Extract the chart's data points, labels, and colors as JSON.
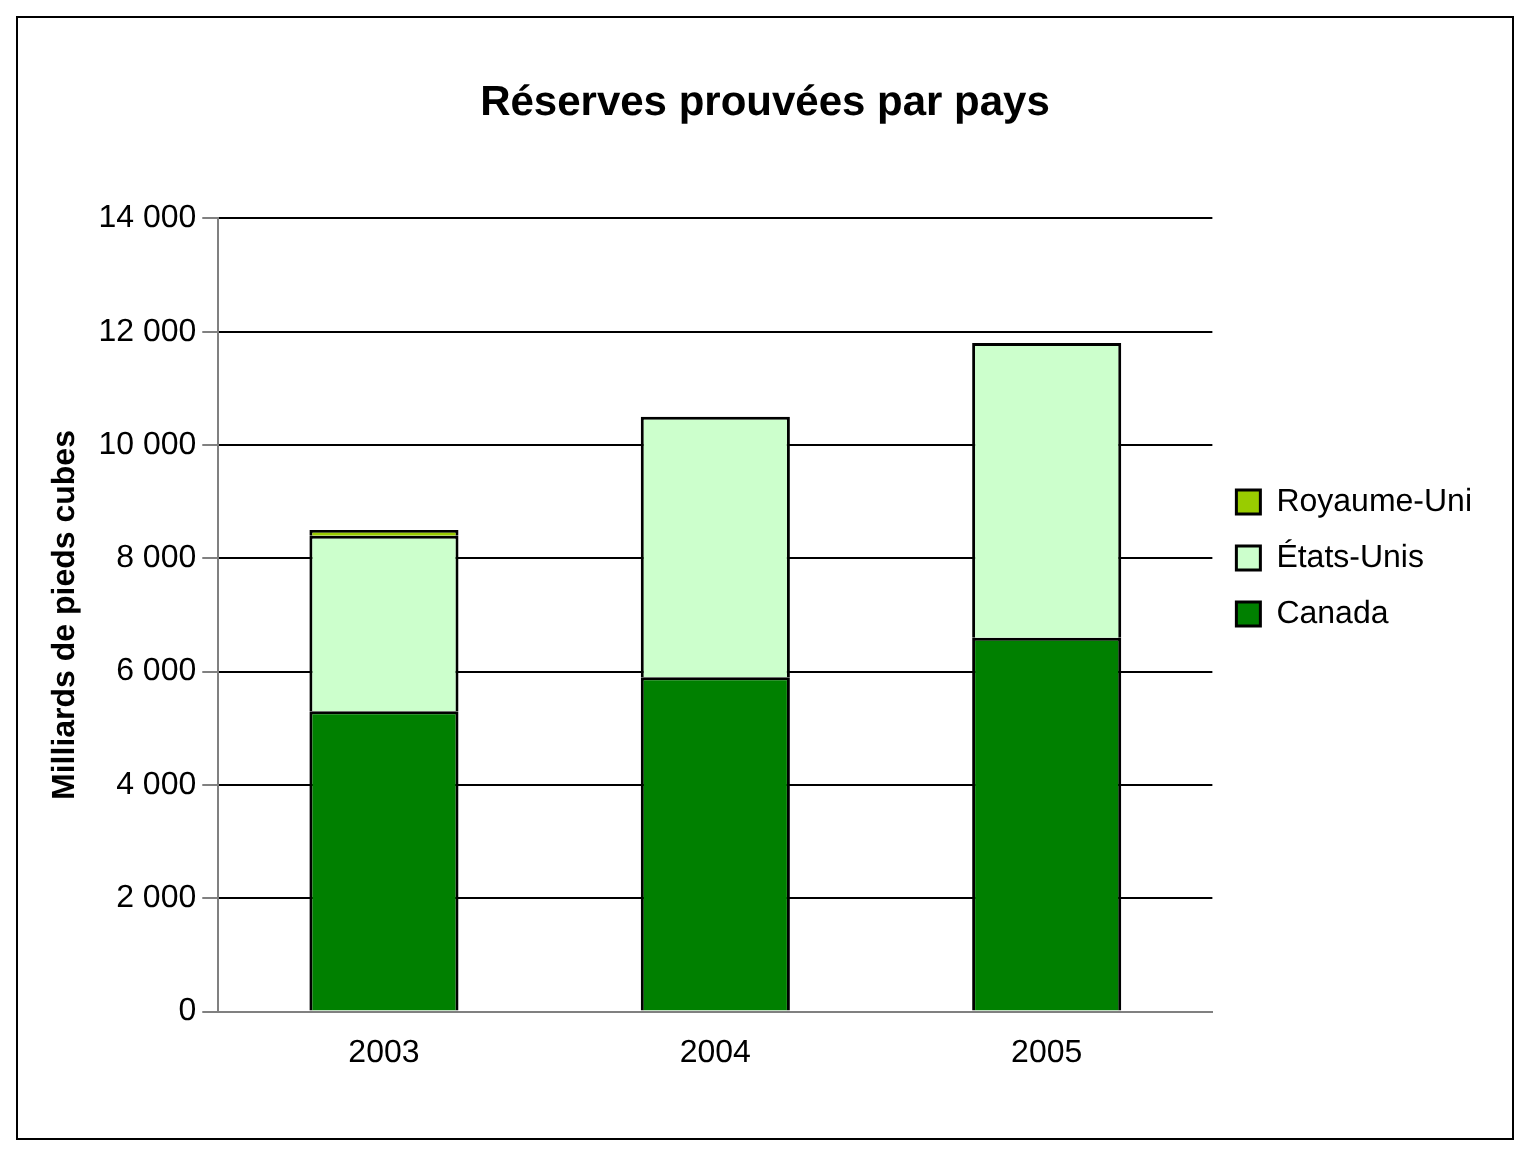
{
  "chart_data": {
    "type": "bar",
    "title": "Réserves prouvées par pays",
    "ylabel": "Milliards de pieds cubes",
    "categories": [
      "2003",
      "2004",
      "2005"
    ],
    "stacked": true,
    "series": [
      {
        "name": "Canada",
        "color": "#008000",
        "values": [
          5300,
          5900,
          6600
        ]
      },
      {
        "name": "États-Unis",
        "color": "#ccffcc",
        "values": [
          3100,
          4600,
          5200
        ]
      },
      {
        "name": "Royaume-Uni",
        "color": "#99cc00",
        "values": [
          100,
          0,
          0
        ]
      }
    ],
    "ylim": [
      0,
      14000
    ],
    "yticks": [
      {
        "value": 0,
        "label": "0"
      },
      {
        "value": 2000,
        "label": "2 000"
      },
      {
        "value": 4000,
        "label": "4 000"
      },
      {
        "value": 6000,
        "label": "6 000"
      },
      {
        "value": 8000,
        "label": "8 000"
      },
      {
        "value": 10000,
        "label": "10 000"
      },
      {
        "value": 12000,
        "label": "12 000"
      },
      {
        "value": 14000,
        "label": "14 000"
      }
    ],
    "grid": "y",
    "legend": "right"
  }
}
